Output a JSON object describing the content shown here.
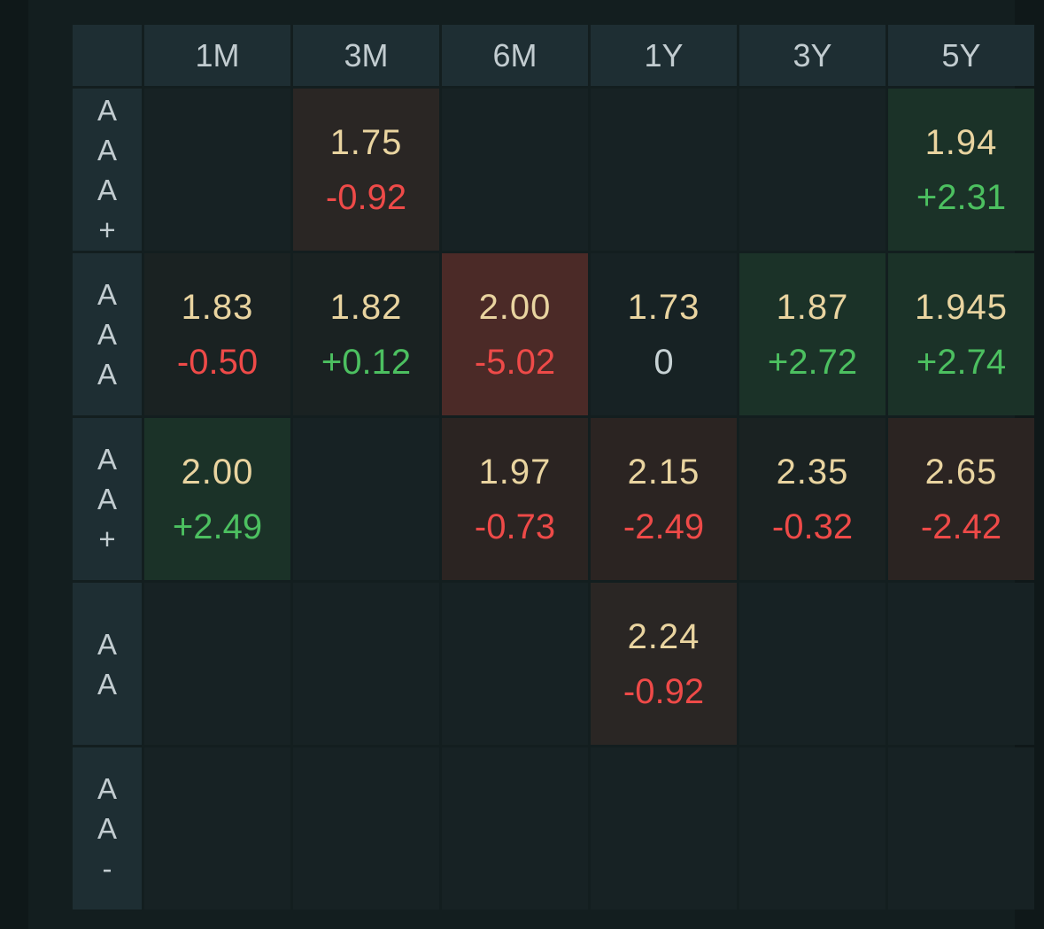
{
  "columns": [
    "1M",
    "3M",
    "6M",
    "1Y",
    "3Y",
    "5Y"
  ],
  "rows": [
    {
      "label": [
        "A",
        "A",
        "A",
        "+"
      ],
      "cells": [
        null,
        {
          "price": "1.75",
          "change": "-0.92",
          "dir": "neg",
          "bg": "bg-brown"
        },
        null,
        null,
        null,
        {
          "price": "1.94",
          "change": "+2.31",
          "dir": "pos",
          "bg": "bg-green"
        }
      ]
    },
    {
      "label": [
        "A",
        "A",
        "A"
      ],
      "cells": [
        {
          "price": "1.83",
          "change": "-0.50",
          "dir": "neg",
          "bg": "bg-dark"
        },
        {
          "price": "1.82",
          "change": "+0.12",
          "dir": "pos",
          "bg": "bg-dark"
        },
        {
          "price": "2.00",
          "change": "-5.02",
          "dir": "neg",
          "bg": "bg-red"
        },
        {
          "price": "1.73",
          "change": "0",
          "dir": "zero",
          "bg": ""
        },
        {
          "price": "1.87",
          "change": "+2.72",
          "dir": "pos",
          "bg": "bg-green"
        },
        {
          "price": "1.945",
          "change": "+2.74",
          "dir": "pos",
          "bg": "bg-green"
        }
      ]
    },
    {
      "label": [
        "A",
        "A",
        "+"
      ],
      "cells": [
        {
          "price": "2.00",
          "change": "+2.49",
          "dir": "pos",
          "bg": "bg-green"
        },
        null,
        {
          "price": "1.97",
          "change": "-0.73",
          "dir": "neg",
          "bg": "bg-redbrown"
        },
        {
          "price": "2.15",
          "change": "-2.49",
          "dir": "neg",
          "bg": "bg-redbrown"
        },
        {
          "price": "2.35",
          "change": "-0.32",
          "dir": "neg",
          "bg": "bg-dark"
        },
        {
          "price": "2.65",
          "change": "-2.42",
          "dir": "neg",
          "bg": "bg-redbrown"
        }
      ]
    },
    {
      "label": [
        "A",
        "A"
      ],
      "cells": [
        null,
        null,
        null,
        {
          "price": "2.24",
          "change": "-0.92",
          "dir": "neg",
          "bg": "bg-brown"
        },
        null,
        null
      ]
    },
    {
      "label": [
        "A",
        "A",
        "-"
      ],
      "cells": [
        null,
        null,
        null,
        null,
        null,
        null
      ]
    }
  ],
  "colors": {
    "price": "#e9d4a0",
    "positive": "#4cc060",
    "negative": "#ee4a48",
    "neutral": "#c7d2d4",
    "header_bg": "#1e2e33",
    "cell_bg": "#172224"
  }
}
